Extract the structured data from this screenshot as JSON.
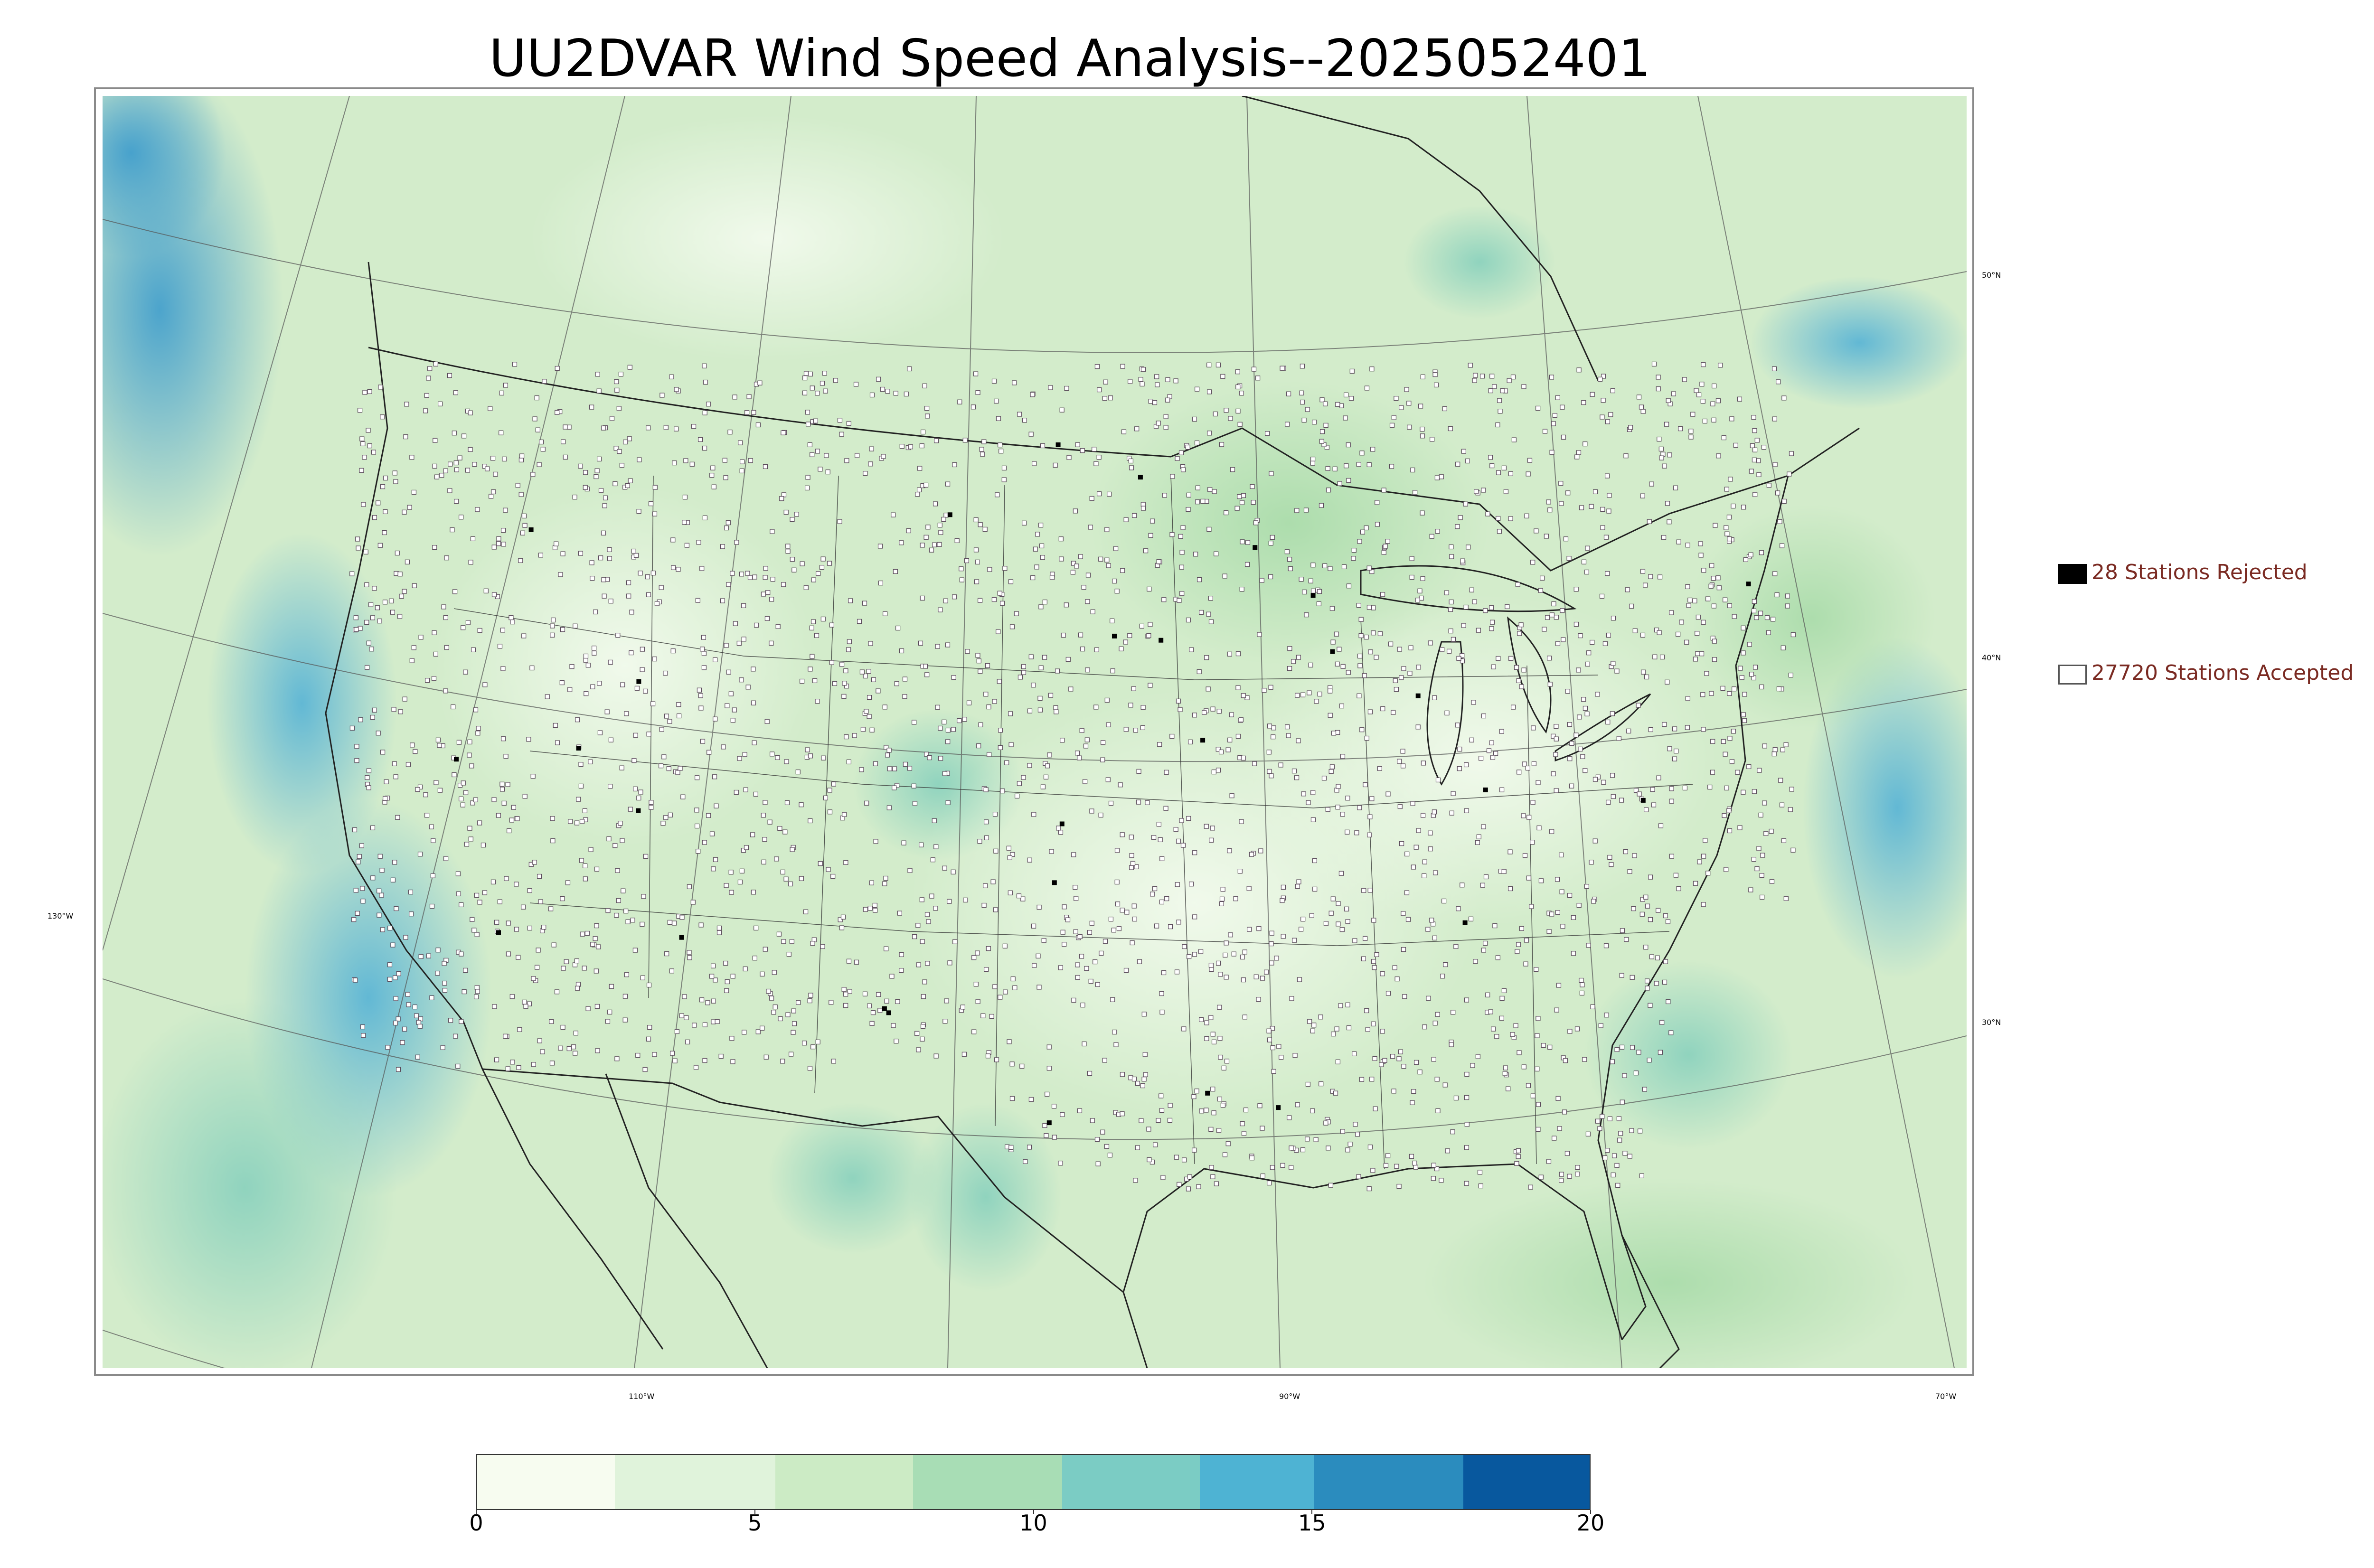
{
  "title": "UU2DVAR Wind Speed Analysis--2025052401",
  "legend": {
    "rejected_label": "28 Stations Rejected",
    "accepted_label": "27720 Stations Accepted",
    "rejected_color": "#000000",
    "accepted_color": "#ffffff"
  },
  "latitude_labels": [
    "50°N",
    "40°N",
    "30°N"
  ],
  "longitude_labels": [
    "130°W",
    "110°W",
    "90°W",
    "70°W"
  ],
  "colorbar": {
    "min": 0,
    "max": 20,
    "ticks": [
      "0",
      "5",
      "10",
      "15",
      "20"
    ],
    "colors": [
      "#f7fcf0",
      "#e0f3db",
      "#ccebc5",
      "#a8ddb5",
      "#7bccc4",
      "#4eb3d3",
      "#2b8cbe",
      "#08589e"
    ]
  },
  "map": {
    "background_colors": {
      "calm": "#e8f5e0",
      "moderate": "#b8e2bf",
      "windy": "#5fb8d8",
      "strong": "#3592c8"
    },
    "boundary_color": "#222222",
    "gridline_color": "#555555"
  }
}
